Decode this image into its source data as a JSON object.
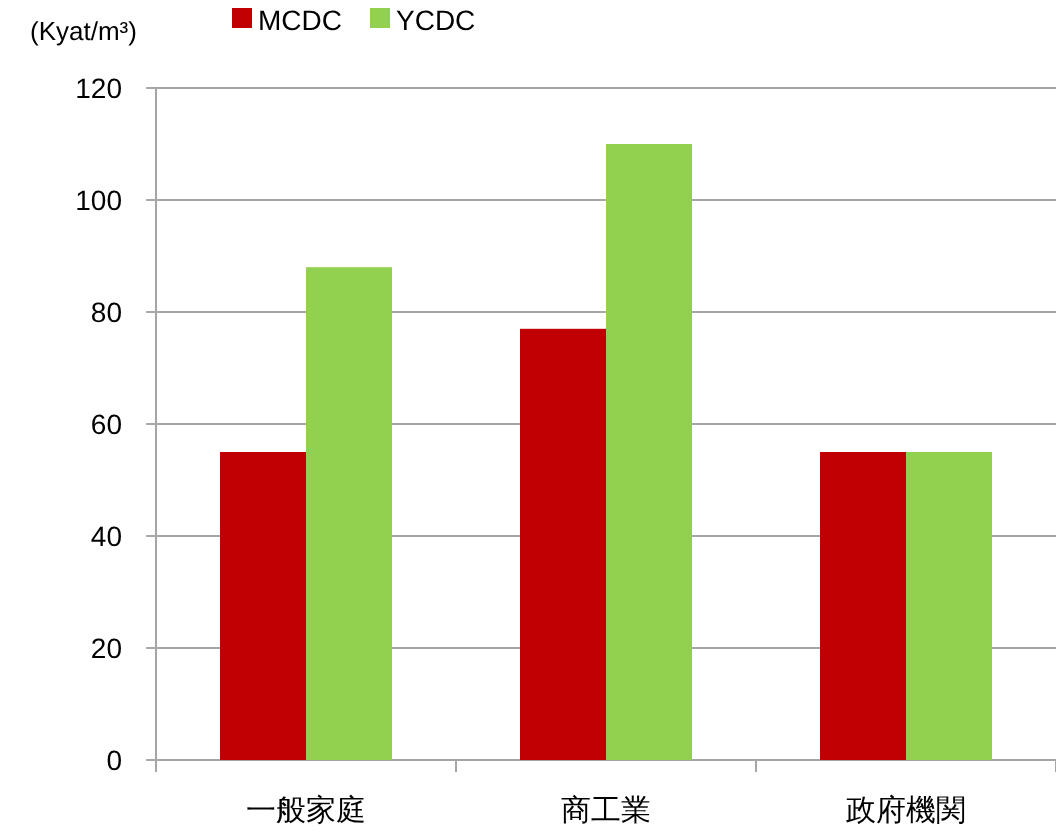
{
  "chart_data": {
    "type": "bar",
    "ylabel": "(Kyat/m³)",
    "categories": [
      "一般家庭",
      "商工業",
      "政府機関"
    ],
    "series": [
      {
        "name": "MCDC",
        "color": "#c00000",
        "values": [
          55,
          77,
          55
        ]
      },
      {
        "name": "YCDC",
        "color": "#92d050",
        "values": [
          88,
          110,
          55
        ]
      }
    ],
    "ylim": [
      0,
      120
    ],
    "yticks": [
      0,
      20,
      40,
      60,
      80,
      100,
      120
    ],
    "grid": "y",
    "legend": "top"
  }
}
